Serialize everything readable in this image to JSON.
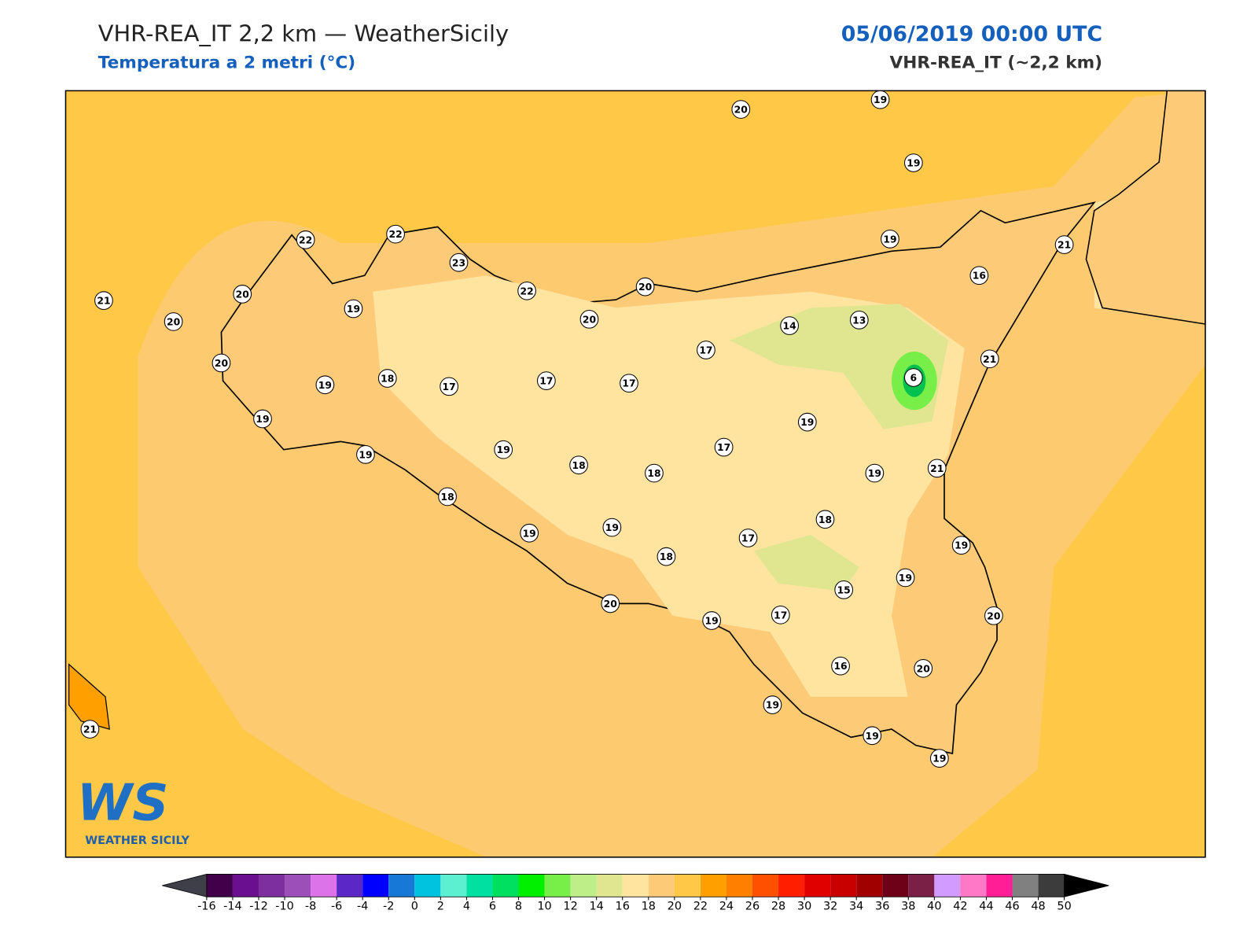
{
  "header": {
    "title": "VHR-REA_IT 2,2 km — WeatherSicily",
    "subtitle": "Temperatura a 2 metri (°C)",
    "datetime": "05/06/2019 00:00 UTC",
    "model": "VHR-REA_IT (~2,2 km)"
  },
  "logo": {
    "mark": "WS",
    "name": "WEATHER SICILY"
  },
  "stations": {
    "values": [
      20,
      19,
      19,
      19,
      21,
      16,
      22,
      22,
      23,
      22,
      20,
      20,
      21,
      20,
      20,
      19,
      20,
      19,
      18,
      17,
      17,
      17,
      17,
      14,
      13,
      6,
      21,
      19,
      19,
      19,
      19,
      17,
      18,
      18,
      19,
      21,
      18,
      19,
      19,
      18,
      17,
      18,
      19,
      19,
      15,
      20,
      19,
      17,
      20,
      16,
      20,
      19,
      19,
      19,
      21
    ]
  },
  "colorbar": {
    "ticks": [
      -16,
      -14,
      -12,
      -10,
      -8,
      -6,
      -4,
      -2,
      0,
      2,
      4,
      6,
      8,
      10,
      12,
      14,
      16,
      18,
      20,
      22,
      24,
      26,
      28,
      30,
      32,
      34,
      36,
      38,
      40,
      42,
      44,
      46,
      48,
      50
    ],
    "colors": [
      "#42004a",
      "#6a0f8f",
      "#7d2fa0",
      "#9c4fb8",
      "#dc73e8",
      "#5b27c7",
      "#0000ff",
      "#1878d8",
      "#00c3e0",
      "#5cefd0",
      "#00e0a0",
      "#00e060",
      "#00f000",
      "#78ee48",
      "#bdee88",
      "#e0e68f",
      "#ffe4a0",
      "#fdca78",
      "#ffc846",
      "#ffa000",
      "#ff8000",
      "#ff5000",
      "#ff1e00",
      "#e10000",
      "#c80000",
      "#a00000",
      "#6e0018",
      "#7a2046",
      "#d29bff",
      "#ff78c8",
      "#ff1e96",
      "#808080",
      "#3c3c3c"
    ],
    "under_color": "#3f3f4a",
    "over_color": "#000000"
  }
}
